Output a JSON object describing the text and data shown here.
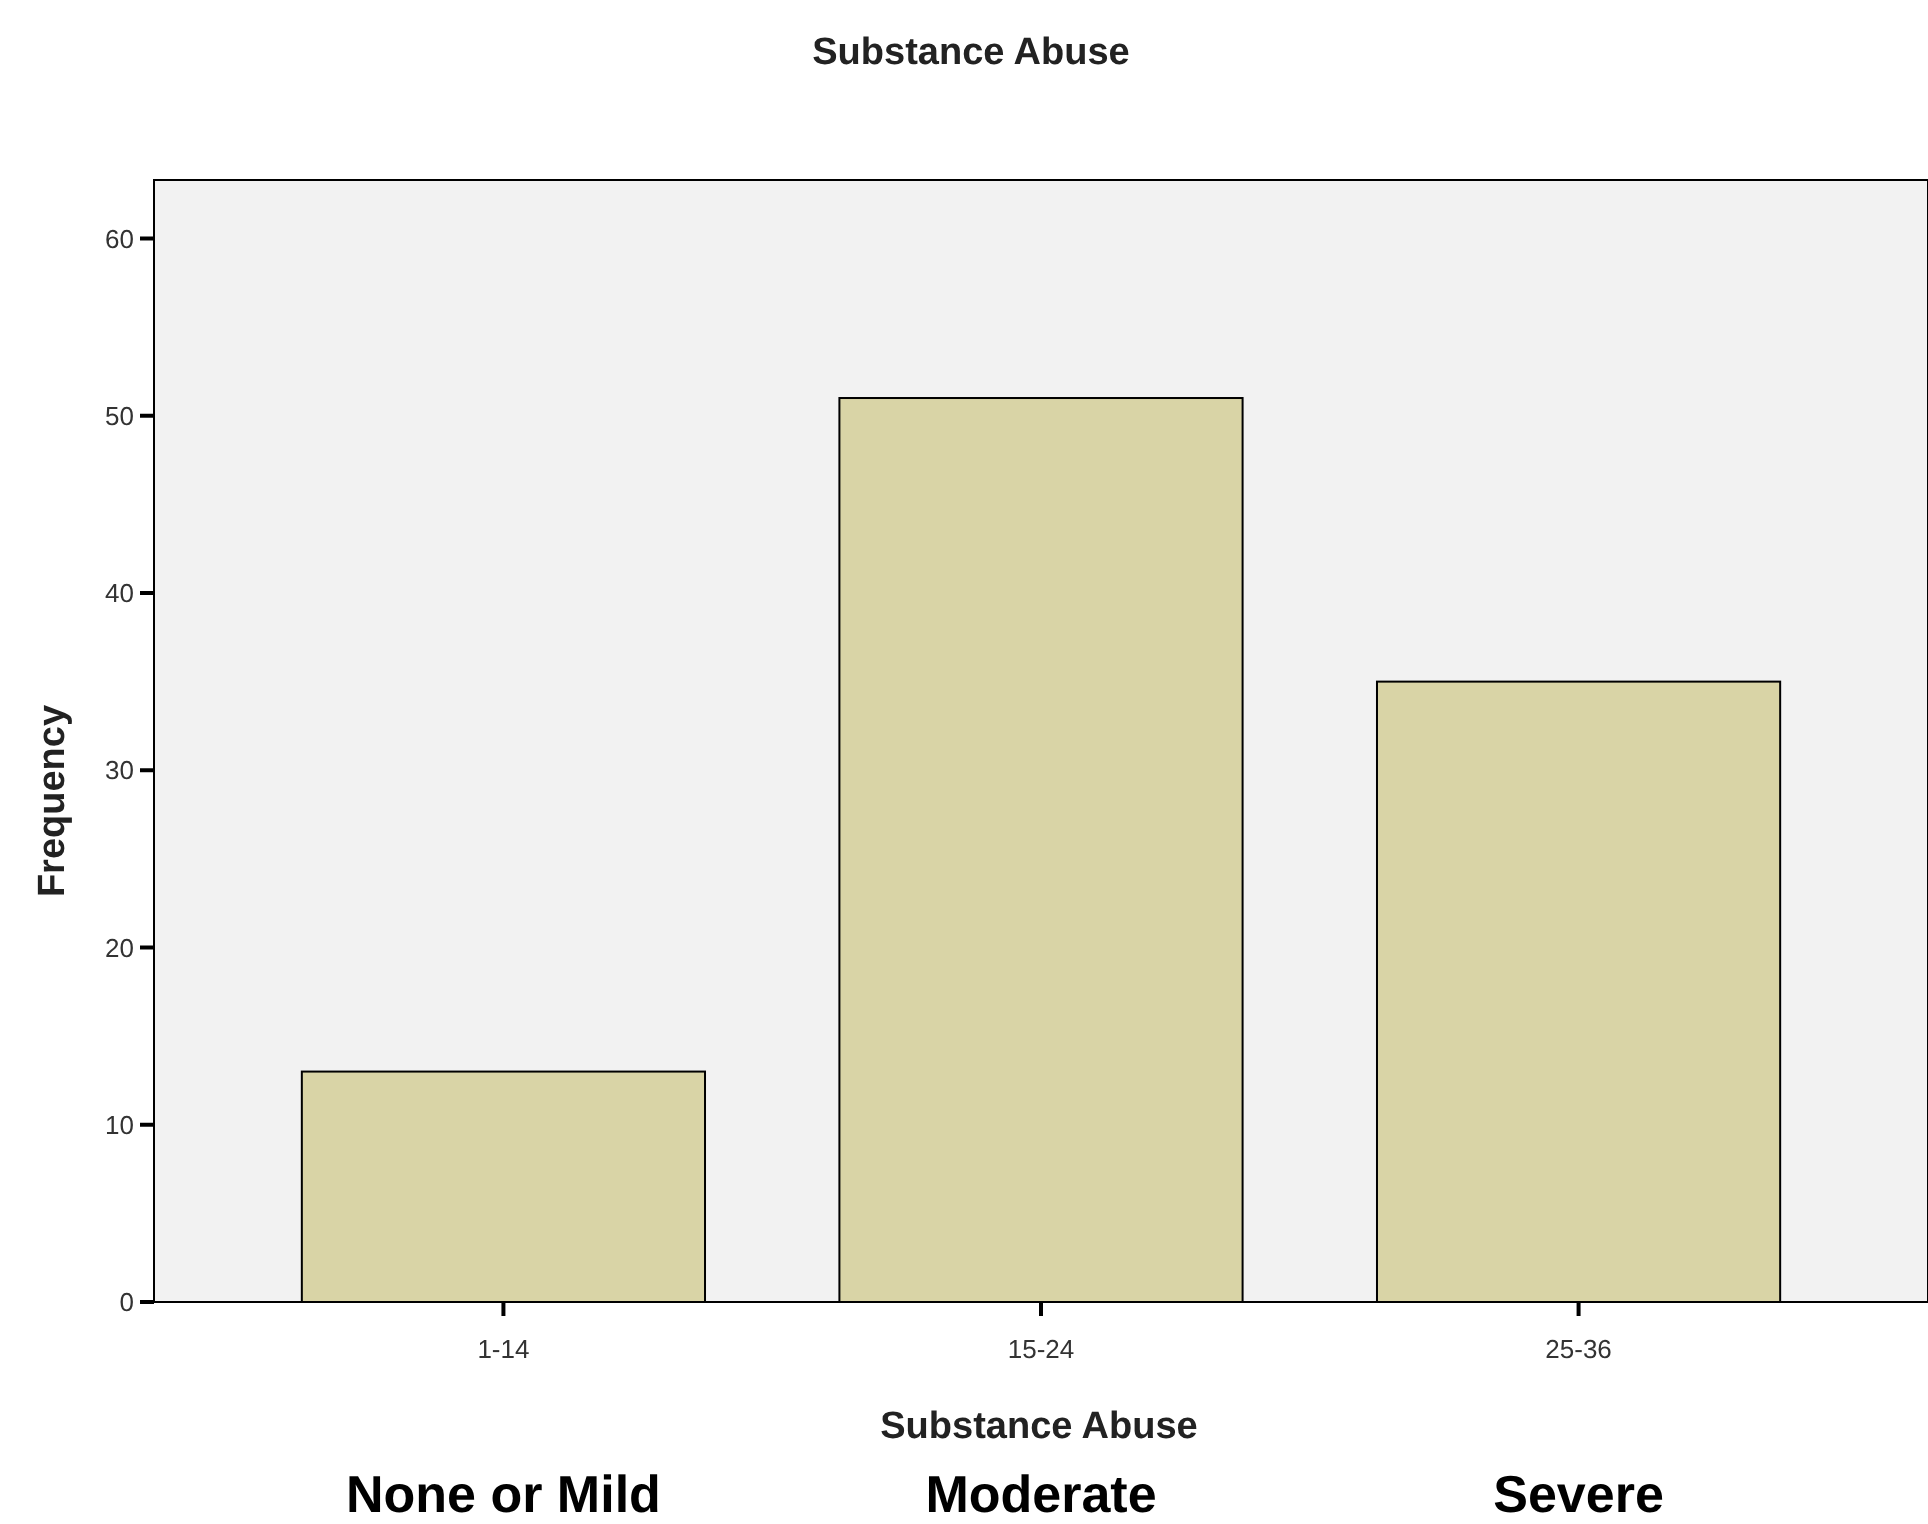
{
  "chart_data": {
    "type": "bar",
    "title": "Substance Abuse",
    "xlabel": "Substance Abuse",
    "ylabel": "Frequency",
    "categories": [
      "1-14",
      "15-24",
      "25-36"
    ],
    "values": [
      13,
      51,
      35
    ],
    "color": "#d9d4a6",
    "ylim": [
      0,
      63.3
    ],
    "yticks": [
      0,
      10,
      20,
      30,
      40,
      50,
      60
    ],
    "grid": false,
    "annotations": [
      "None or Mild",
      "Moderate",
      "Severe"
    ]
  }
}
